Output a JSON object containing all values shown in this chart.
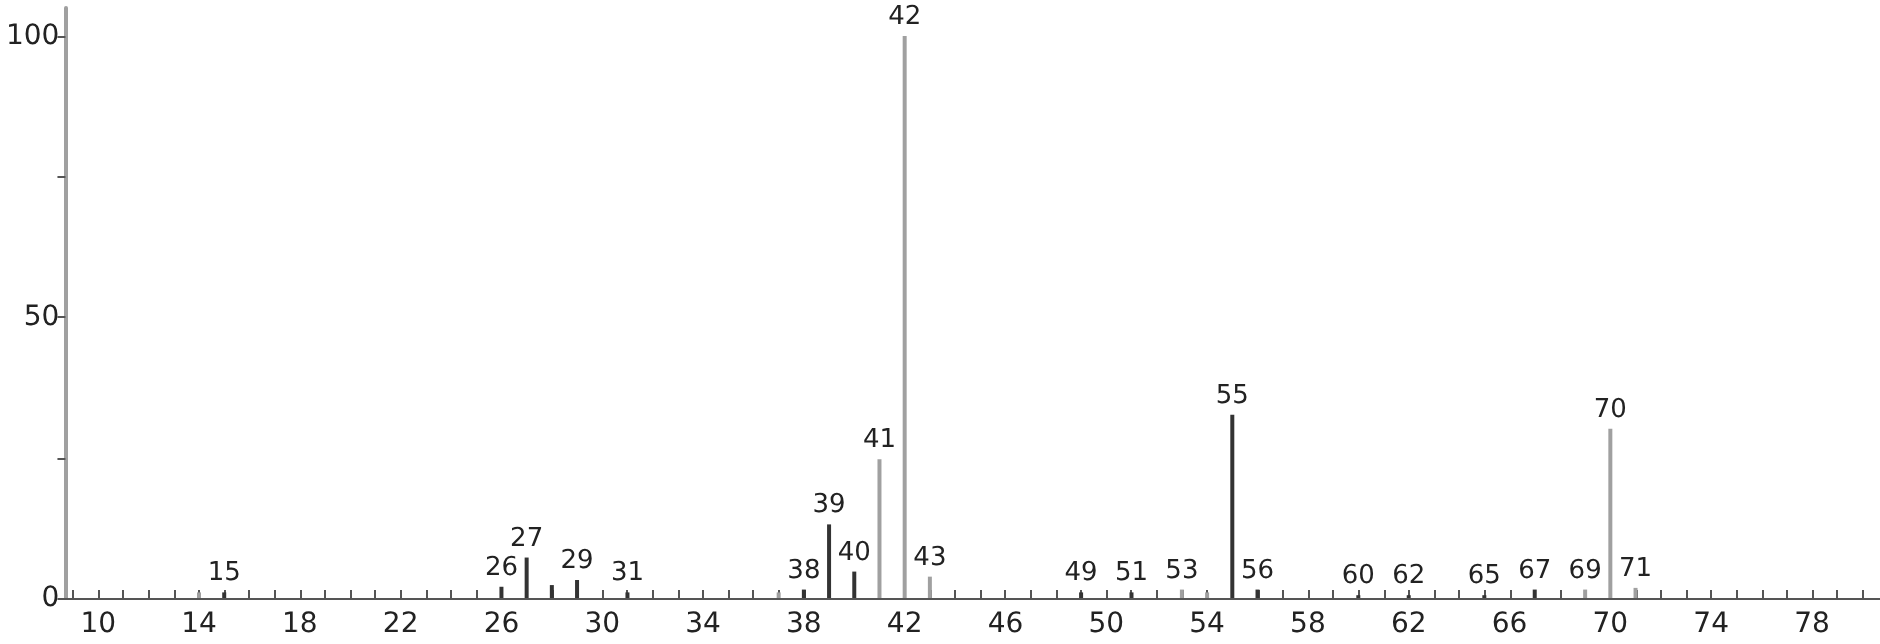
{
  "chart_data": {
    "type": "bar",
    "x": [
      14,
      15,
      26,
      27,
      28,
      29,
      31,
      37,
      38,
      39,
      40,
      41,
      42,
      43,
      49,
      51,
      53,
      54,
      55,
      56,
      60,
      62,
      65,
      67,
      69,
      70,
      71
    ],
    "values": [
      1,
      1,
      2,
      7.2,
      2.3,
      3.2,
      1,
      1,
      1.5,
      13.1,
      4.7,
      24.7,
      100,
      3.8,
      1,
      1,
      1.5,
      1,
      32.6,
      1.5,
      0.5,
      0.5,
      0.5,
      1.5,
      1.5,
      30.1,
      1.8
    ],
    "colors": [
      "#a0a0a0",
      "#333333",
      "#333333",
      "#333333",
      "#333333",
      "#333333",
      "#333333",
      "#a0a0a0",
      "#333333",
      "#333333",
      "#333333",
      "#a0a0a0",
      "#a0a0a0",
      "#a0a0a0",
      "#333333",
      "#333333",
      "#a0a0a0",
      "#a0a0a0",
      "#333333",
      "#333333",
      "#333333",
      "#333333",
      "#333333",
      "#333333",
      "#a0a0a0",
      "#a0a0a0",
      "#a0a0a0"
    ],
    "annotations": [
      {
        "text": "15",
        "x": 15,
        "y": 1
      },
      {
        "text": "26",
        "x": 26,
        "y": 2
      },
      {
        "text": "27",
        "x": 27,
        "y": 7.2
      },
      {
        "text": "29",
        "x": 29,
        "y": 3.2
      },
      {
        "text": "31",
        "x": 31,
        "y": 1
      },
      {
        "text": "38",
        "x": 38,
        "y": 1.5
      },
      {
        "text": "39",
        "x": 39,
        "y": 13.1
      },
      {
        "text": "40",
        "x": 40,
        "y": 4.7
      },
      {
        "text": "41",
        "x": 41,
        "y": 24.7
      },
      {
        "text": "42",
        "x": 42,
        "y": 100
      },
      {
        "text": "43",
        "x": 43,
        "y": 3.8
      },
      {
        "text": "49",
        "x": 49,
        "y": 1
      },
      {
        "text": "51",
        "x": 51,
        "y": 1
      },
      {
        "text": "53",
        "x": 53,
        "y": 1.5
      },
      {
        "text": "55",
        "x": 55,
        "y": 32.6
      },
      {
        "text": "56",
        "x": 56,
        "y": 1.5
      },
      {
        "text": "60",
        "x": 60,
        "y": 0.5
      },
      {
        "text": "62",
        "x": 62,
        "y": 0.5
      },
      {
        "text": "65",
        "x": 65,
        "y": 0.5
      },
      {
        "text": "67",
        "x": 67,
        "y": 1.5
      },
      {
        "text": "69",
        "x": 69,
        "y": 1.5
      },
      {
        "text": "70",
        "x": 70,
        "y": 30.1
      },
      {
        "text": "71",
        "x": 71,
        "y": 1.8
      }
    ],
    "xlim": [
      8.7,
      80.7
    ],
    "xticks": [
      {
        "value": 9,
        "label": null
      },
      10,
      {
        "value": 11,
        "label": null
      },
      {
        "value": 12,
        "label": null
      },
      {
        "value": 13,
        "label": null
      },
      14,
      {
        "value": 15,
        "label": null
      },
      {
        "value": 16,
        "label": null
      },
      {
        "value": 17,
        "label": null
      },
      18,
      {
        "value": 19,
        "label": null
      },
      {
        "value": 20,
        "label": null
      },
      {
        "value": 21,
        "label": null
      },
      22,
      {
        "value": 23,
        "label": null
      },
      {
        "value": 24,
        "label": null
      },
      {
        "value": 25,
        "label": null
      },
      26,
      {
        "value": 27,
        "label": null
      },
      {
        "value": 28,
        "label": null
      },
      {
        "value": 29,
        "label": null
      },
      30,
      {
        "value": 31,
        "label": null
      },
      {
        "value": 32,
        "label": null
      },
      {
        "value": 33,
        "label": null
      },
      34,
      {
        "value": 35,
        "label": null
      },
      {
        "value": 36,
        "label": null
      },
      {
        "value": 37,
        "label": null
      },
      38,
      {
        "value": 39,
        "label": null
      },
      {
        "value": 40,
        "label": null
      },
      {
        "value": 41,
        "label": null
      },
      42,
      {
        "value": 43,
        "label": null
      },
      {
        "value": 44,
        "label": null
      },
      {
        "value": 45,
        "label": null
      },
      46,
      {
        "value": 47,
        "label": null
      },
      {
        "value": 48,
        "label": null
      },
      {
        "value": 49,
        "label": null
      },
      50,
      {
        "value": 51,
        "label": null
      },
      {
        "value": 52,
        "label": null
      },
      {
        "value": 53,
        "label": null
      },
      54,
      {
        "value": 55,
        "label": null
      },
      {
        "value": 56,
        "label": null
      },
      {
        "value": 57,
        "label": null
      },
      58,
      {
        "value": 59,
        "label": null
      },
      {
        "value": 60,
        "label": null
      },
      {
        "value": 61,
        "label": null
      },
      62,
      {
        "value": 63,
        "label": null
      },
      {
        "value": 64,
        "label": null
      },
      {
        "value": 65,
        "label": null
      },
      66,
      {
        "value": 67,
        "label": null
      },
      {
        "value": 68,
        "label": null
      },
      {
        "value": 69,
        "label": null
      },
      70,
      {
        "value": 71,
        "label": null
      },
      {
        "value": 72,
        "label": null
      },
      {
        "value": 73,
        "label": null
      },
      74,
      {
        "value": 75,
        "label": null
      },
      {
        "value": 76,
        "label": null
      },
      {
        "value": 77,
        "label": null
      },
      78,
      {
        "value": 79,
        "label": null
      },
      {
        "value": 80,
        "label": null
      }
    ],
    "ylim": [
      0,
      105
    ],
    "yticks": [
      0,
      {
        "value": 25,
        "label": null
      },
      50,
      {
        "value": 75,
        "label": null
      },
      100
    ]
  }
}
